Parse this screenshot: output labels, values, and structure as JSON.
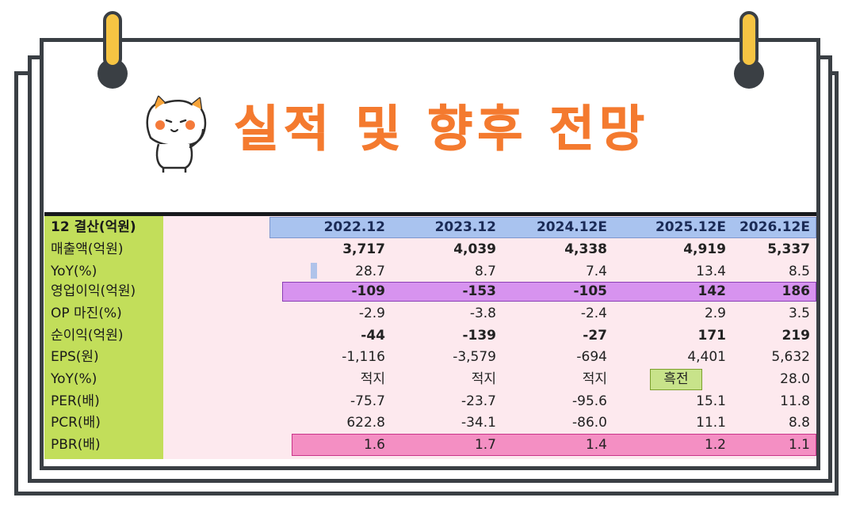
{
  "title": "실적 및 향후 전망",
  "header": {
    "label": "12 결산(억원)",
    "years": [
      "2022.12",
      "2023.12",
      "2024.12E",
      "2025.12E",
      "2026.12E"
    ]
  },
  "rows": [
    {
      "label": "매출액(억원)",
      "values": [
        "3,717",
        "4,039",
        "4,338",
        "4,919",
        "5,337"
      ]
    },
    {
      "label": "YoY(%)",
      "values": [
        "28.7",
        "8.7",
        "7.4",
        "13.4",
        "8.5"
      ]
    },
    {
      "label": "영업이익(억원)",
      "values": [
        "-109",
        "-153",
        "-105",
        "142",
        "186"
      ]
    },
    {
      "label": "OP 마진(%)",
      "values": [
        "-2.9",
        "-3.8",
        "-2.4",
        "2.9",
        "3.5"
      ]
    },
    {
      "label": "순이익(억원)",
      "values": [
        "-44",
        "-139",
        "-27",
        "171",
        "219"
      ]
    },
    {
      "label": "EPS(원)",
      "values": [
        "-1,116",
        "-3,579",
        "-694",
        "4,401",
        "5,632"
      ]
    },
    {
      "label": "YoY(%)",
      "values": [
        "적지",
        "적지",
        "적지",
        "흑전",
        "28.0"
      ]
    },
    {
      "label": "PER(배)",
      "values": [
        "-75.7",
        "-23.7",
        "-95.6",
        "15.1",
        "11.8"
      ]
    },
    {
      "label": "PCR(배)",
      "values": [
        "622.8",
        "-34.1",
        "-86.0",
        "11.1",
        "8.8"
      ]
    },
    {
      "label": "PBR(배)",
      "values": [
        "1.6",
        "1.7",
        "1.4",
        "1.2",
        "1.1"
      ]
    }
  ],
  "colors": {
    "title": "#f47a2f",
    "label_column": "#c2de5a",
    "table_bg": "#fde9ee",
    "header_band": "#a9c3ef",
    "operating_profit_band": "#d793ef",
    "pbr_band": "#f48fc3",
    "turnaround_tag": "#c8e38a",
    "ring": "#f6c443"
  },
  "icons": [
    "calendar-ring-icon",
    "cat-mascot-icon"
  ]
}
